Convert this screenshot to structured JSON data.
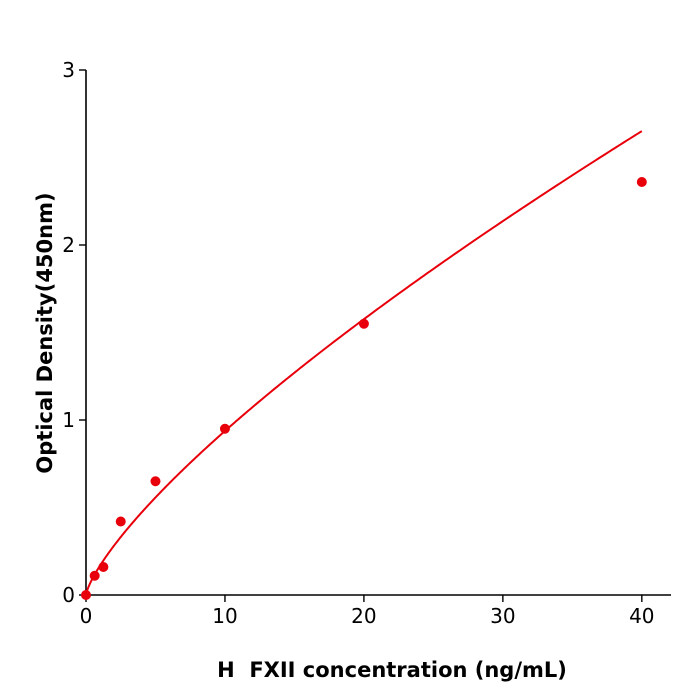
{
  "chart_data": {
    "type": "scatter",
    "title": "",
    "xlabel": "H  FXII concentration (ng/mL)",
    "ylabel": "Optical Density(450nm)",
    "xlim": [
      0,
      42.1
    ],
    "ylim": [
      0,
      3
    ],
    "xticks": [
      0,
      10,
      20,
      30,
      40
    ],
    "yticks": [
      0,
      1,
      2,
      3
    ],
    "grid": false,
    "series": [
      {
        "x": [
          0,
          0.625,
          1.25,
          2.5,
          5,
          10,
          20,
          40
        ],
        "y": [
          0.0,
          0.11,
          0.16,
          0.42,
          0.65,
          0.95,
          1.55,
          2.36
        ],
        "color": "#e8000b",
        "fit": "power curve"
      }
    ]
  }
}
